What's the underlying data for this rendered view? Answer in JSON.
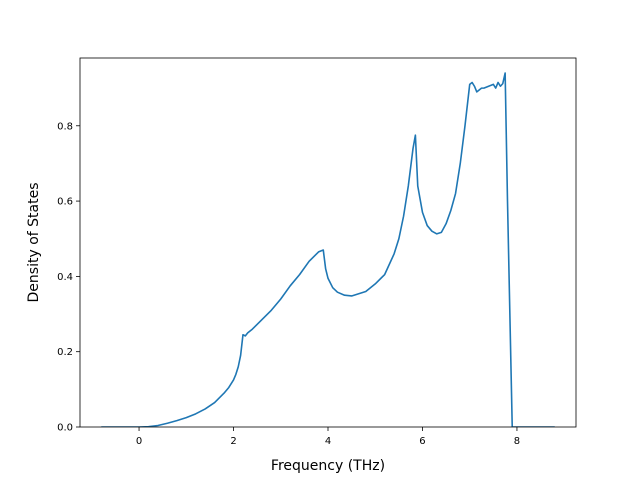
{
  "chart_data": {
    "type": "line",
    "xlabel": "Frequency (THz)",
    "ylabel": "Density of States",
    "xlim": [
      -1.25,
      9.25
    ],
    "ylim": [
      0.0,
      0.98
    ],
    "xticks": [
      0,
      2,
      4,
      6,
      8
    ],
    "xtick_labels": [
      "0",
      "2",
      "4",
      "6",
      "8"
    ],
    "yticks": [
      0.0,
      0.2,
      0.4,
      0.6,
      0.8
    ],
    "ytick_labels": [
      "0.0",
      "0.2",
      "0.4",
      "0.6",
      "0.8"
    ],
    "grid": false,
    "line_color": "#1f77b4",
    "series": [
      {
        "x": [
          -0.8,
          0.0,
          0.2,
          0.4,
          0.6,
          0.8,
          1.0,
          1.2,
          1.4,
          1.6,
          1.8,
          1.9,
          2.0,
          2.05,
          2.1,
          2.15,
          2.2,
          2.25,
          2.3,
          2.4,
          2.6,
          2.8,
          3.0,
          3.2,
          3.4,
          3.6,
          3.8,
          3.9,
          3.95,
          4.0,
          4.1,
          4.2,
          4.35,
          4.5,
          4.6,
          4.8,
          5.0,
          5.2,
          5.4,
          5.5,
          5.6,
          5.7,
          5.8,
          5.85,
          5.9,
          6.0,
          6.1,
          6.2,
          6.3,
          6.4,
          6.5,
          6.6,
          6.7,
          6.8,
          6.9,
          7.0,
          7.05,
          7.1,
          7.15,
          7.2,
          7.25,
          7.3,
          7.4,
          7.5,
          7.55,
          7.6,
          7.65,
          7.7,
          7.75,
          7.8,
          7.9,
          8.0,
          8.8
        ],
        "y": [
          0.0,
          0.0,
          0.001,
          0.004,
          0.01,
          0.017,
          0.025,
          0.035,
          0.048,
          0.065,
          0.09,
          0.105,
          0.125,
          0.14,
          0.16,
          0.19,
          0.245,
          0.242,
          0.25,
          0.26,
          0.285,
          0.31,
          0.34,
          0.375,
          0.405,
          0.44,
          0.465,
          0.47,
          0.42,
          0.395,
          0.37,
          0.358,
          0.35,
          0.348,
          0.352,
          0.36,
          0.38,
          0.405,
          0.46,
          0.5,
          0.56,
          0.64,
          0.74,
          0.775,
          0.64,
          0.57,
          0.535,
          0.52,
          0.513,
          0.517,
          0.54,
          0.575,
          0.62,
          0.7,
          0.8,
          0.91,
          0.915,
          0.905,
          0.89,
          0.895,
          0.9,
          0.9,
          0.905,
          0.91,
          0.9,
          0.915,
          0.905,
          0.912,
          0.94,
          0.6,
          0.0,
          0.0,
          0.0
        ]
      }
    ]
  }
}
